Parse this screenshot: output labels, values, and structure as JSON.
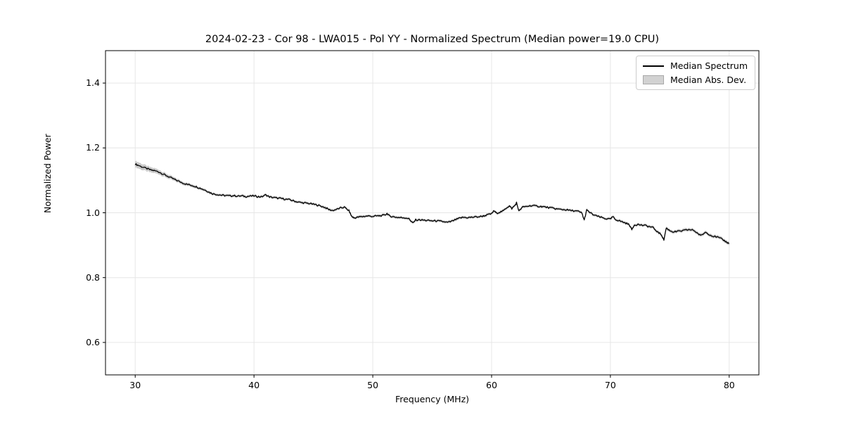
{
  "colors": {
    "line": "#000000",
    "band": "#c9c9c9",
    "grid": "#e6e6e6",
    "frame": "#000000",
    "background": "#ffffff",
    "legend_border": "#cccccc"
  },
  "chart_data": {
    "type": "line",
    "title": "2024-02-23 - Cor 98 - LWA015 - Pol YY - Normalized Spectrum (Median power=19.0 CPU)",
    "xlabel": "Frequency (MHz)",
    "ylabel": "Normalized Power",
    "xlim": [
      27.5,
      82.5
    ],
    "ylim": [
      0.5,
      1.5
    ],
    "xticks": [
      30,
      40,
      50,
      60,
      70,
      80
    ],
    "xtick_labels": [
      "30",
      "40",
      "50",
      "60",
      "70",
      "80"
    ],
    "ytick_values": [
      0.6,
      0.8,
      1.0,
      1.2,
      1.4
    ],
    "ytick_labels": [
      "0.6",
      "0.8",
      "1.0",
      "1.2",
      "1.4"
    ],
    "grid": true,
    "noise_amplitude": 0.0025,
    "legend": {
      "position": "upper right",
      "entries": [
        {
          "label": "Median Spectrum",
          "type": "line",
          "color": "#000000"
        },
        {
          "label": "Median Abs. Dev.",
          "type": "patch",
          "color": "#d2d2d2"
        }
      ]
    },
    "series": [
      {
        "name": "Median Spectrum",
        "points": [
          [
            30.0,
            1.15
          ],
          [
            30.3,
            1.146
          ],
          [
            30.6,
            1.141
          ],
          [
            31.0,
            1.136
          ],
          [
            31.3,
            1.132
          ],
          [
            31.6,
            1.13
          ],
          [
            32.0,
            1.126
          ],
          [
            32.3,
            1.12
          ],
          [
            32.6,
            1.115
          ],
          [
            33.0,
            1.108
          ],
          [
            33.3,
            1.103
          ],
          [
            33.6,
            1.098
          ],
          [
            34.0,
            1.092
          ],
          [
            34.3,
            1.088
          ],
          [
            34.6,
            1.086
          ],
          [
            35.0,
            1.082
          ],
          [
            35.3,
            1.078
          ],
          [
            35.6,
            1.074
          ],
          [
            36.0,
            1.068
          ],
          [
            36.3,
            1.062
          ],
          [
            36.6,
            1.058
          ],
          [
            37.0,
            1.056
          ],
          [
            37.3,
            1.054
          ],
          [
            37.6,
            1.053
          ],
          [
            38.0,
            1.052
          ],
          [
            38.3,
            1.053
          ],
          [
            38.6,
            1.051
          ],
          [
            39.0,
            1.052
          ],
          [
            39.3,
            1.05
          ],
          [
            39.6,
            1.051
          ],
          [
            40.0,
            1.052
          ],
          [
            40.3,
            1.05
          ],
          [
            40.6,
            1.049
          ],
          [
            41.0,
            1.055
          ],
          [
            41.3,
            1.049
          ],
          [
            41.6,
            1.047
          ],
          [
            42.0,
            1.045
          ],
          [
            42.3,
            1.044
          ],
          [
            42.6,
            1.042
          ],
          [
            43.0,
            1.04
          ],
          [
            43.3,
            1.037
          ],
          [
            43.6,
            1.034
          ],
          [
            44.0,
            1.031
          ],
          [
            44.3,
            1.03
          ],
          [
            44.6,
            1.029
          ],
          [
            45.0,
            1.026
          ],
          [
            45.3,
            1.024
          ],
          [
            45.6,
            1.021
          ],
          [
            46.0,
            1.016
          ],
          [
            46.3,
            1.01
          ],
          [
            46.6,
            1.007
          ],
          [
            47.0,
            1.011
          ],
          [
            47.3,
            1.015
          ],
          [
            47.6,
            1.017
          ],
          [
            48.0,
            1.006
          ],
          [
            48.2,
            0.99
          ],
          [
            48.4,
            0.984
          ],
          [
            48.7,
            0.986
          ],
          [
            49.0,
            0.988
          ],
          [
            49.3,
            0.989
          ],
          [
            49.6,
            0.99
          ],
          [
            50.0,
            0.989
          ],
          [
            50.3,
            0.99
          ],
          [
            50.6,
            0.991
          ],
          [
            51.0,
            0.992
          ],
          [
            51.2,
            0.998
          ],
          [
            51.4,
            0.99
          ],
          [
            51.7,
            0.988
          ],
          [
            52.0,
            0.986
          ],
          [
            52.3,
            0.985
          ],
          [
            52.6,
            0.985
          ],
          [
            53.0,
            0.983
          ],
          [
            53.2,
            0.975
          ],
          [
            53.4,
            0.968
          ],
          [
            53.6,
            0.978
          ],
          [
            54.0,
            0.978
          ],
          [
            54.3,
            0.977
          ],
          [
            54.6,
            0.976
          ],
          [
            55.0,
            0.975
          ],
          [
            55.3,
            0.975
          ],
          [
            55.6,
            0.974
          ],
          [
            56.0,
            0.972
          ],
          [
            56.3,
            0.97
          ],
          [
            56.6,
            0.973
          ],
          [
            57.0,
            0.979
          ],
          [
            57.3,
            0.983
          ],
          [
            57.6,
            0.986
          ],
          [
            58.0,
            0.985
          ],
          [
            58.3,
            0.986
          ],
          [
            58.6,
            0.987
          ],
          [
            59.0,
            0.988
          ],
          [
            59.3,
            0.99
          ],
          [
            59.6,
            0.993
          ],
          [
            60.0,
            0.997
          ],
          [
            60.2,
            1.006
          ],
          [
            60.4,
            0.999
          ],
          [
            60.7,
            1.002
          ],
          [
            61.0,
            1.006
          ],
          [
            61.3,
            1.017
          ],
          [
            61.5,
            1.021
          ],
          [
            61.7,
            1.013
          ],
          [
            62.0,
            1.024
          ],
          [
            62.1,
            1.031
          ],
          [
            62.3,
            1.005
          ],
          [
            62.6,
            1.017
          ],
          [
            63.0,
            1.02
          ],
          [
            63.3,
            1.022
          ],
          [
            63.6,
            1.021
          ],
          [
            64.0,
            1.02
          ],
          [
            64.3,
            1.019
          ],
          [
            64.6,
            1.017
          ],
          [
            65.0,
            1.015
          ],
          [
            65.3,
            1.013
          ],
          [
            65.6,
            1.011
          ],
          [
            66.0,
            1.01
          ],
          [
            66.3,
            1.009
          ],
          [
            66.6,
            1.007
          ],
          [
            67.0,
            1.006
          ],
          [
            67.3,
            1.004
          ],
          [
            67.6,
            0.999
          ],
          [
            67.8,
            0.977
          ],
          [
            68.0,
            1.008
          ],
          [
            68.3,
            1.0
          ],
          [
            68.6,
            0.993
          ],
          [
            69.0,
            0.988
          ],
          [
            69.3,
            0.985
          ],
          [
            69.6,
            0.982
          ],
          [
            70.0,
            0.98
          ],
          [
            70.2,
            0.988
          ],
          [
            70.4,
            0.98
          ],
          [
            70.7,
            0.976
          ],
          [
            71.0,
            0.972
          ],
          [
            71.3,
            0.968
          ],
          [
            71.6,
            0.963
          ],
          [
            71.8,
            0.948
          ],
          [
            72.0,
            0.962
          ],
          [
            72.3,
            0.964
          ],
          [
            72.6,
            0.962
          ],
          [
            73.0,
            0.96
          ],
          [
            73.3,
            0.957
          ],
          [
            73.6,
            0.954
          ],
          [
            74.0,
            0.94
          ],
          [
            74.3,
            0.932
          ],
          [
            74.5,
            0.916
          ],
          [
            74.7,
            0.953
          ],
          [
            75.0,
            0.945
          ],
          [
            75.3,
            0.941
          ],
          [
            75.6,
            0.942
          ],
          [
            76.0,
            0.944
          ],
          [
            76.3,
            0.946
          ],
          [
            76.6,
            0.948
          ],
          [
            77.0,
            0.946
          ],
          [
            77.3,
            0.938
          ],
          [
            77.6,
            0.929
          ],
          [
            78.0,
            0.94
          ],
          [
            78.3,
            0.934
          ],
          [
            78.6,
            0.928
          ],
          [
            79.0,
            0.925
          ],
          [
            79.3,
            0.92
          ],
          [
            79.6,
            0.914
          ],
          [
            79.8,
            0.909
          ],
          [
            80.0,
            0.905
          ]
        ]
      },
      {
        "name": "Median Abs. Dev.",
        "band_halfwidth_profile": [
          [
            30,
            0.01
          ],
          [
            32,
            0.007
          ],
          [
            34,
            0.005
          ],
          [
            37,
            0.004
          ],
          [
            70,
            0.004
          ],
          [
            76,
            0.005
          ],
          [
            80,
            0.005
          ]
        ]
      }
    ]
  }
}
